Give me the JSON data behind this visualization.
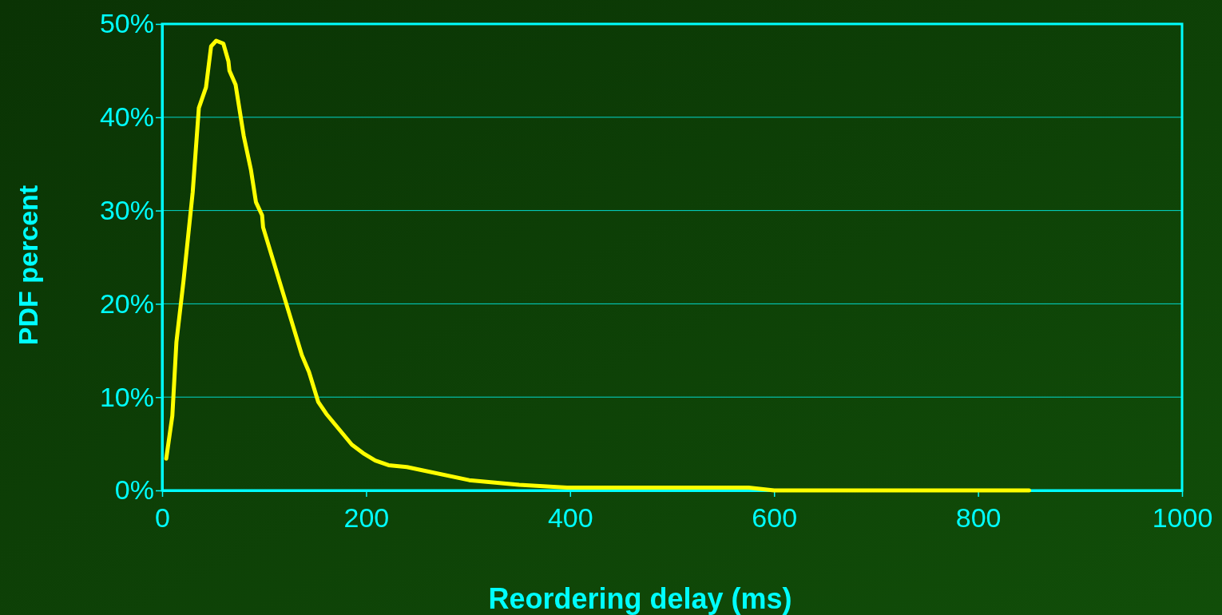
{
  "chart_data": {
    "type": "line",
    "xlabel": "Reordering delay (ms)",
    "ylabel": "PDF percent",
    "xlim": [
      0,
      1000
    ],
    "xticks": [
      0,
      200,
      400,
      600,
      800,
      1000
    ],
    "ylim": [
      0,
      50
    ],
    "yticks": [
      {
        "value": 0,
        "label": "0%"
      },
      {
        "value": 10,
        "label": "10%"
      },
      {
        "value": 20,
        "label": "20%"
      },
      {
        "value": 30,
        "label": "30%"
      },
      {
        "value": 40,
        "label": "40%"
      },
      {
        "value": 50,
        "label": "50%"
      }
    ],
    "grid": "y",
    "marker": "none",
    "line_style": "solid",
    "series": [
      {
        "color": "#ffff00",
        "x": [
          4,
          10,
          14,
          21,
          30,
          36,
          43,
          48,
          53,
          60,
          65,
          66,
          72,
          80,
          87,
          92,
          98,
          99,
          137,
          144,
          153,
          161,
          186,
          197,
          209,
          222,
          240,
          301,
          350,
          397,
          450,
          500,
          575,
          600,
          650,
          700,
          750,
          800,
          850
        ],
        "values": [
          3.4,
          8,
          15.9,
          22.5,
          32,
          41,
          43.2,
          47.6,
          48.2,
          47.9,
          46,
          45,
          43.5,
          38,
          34.4,
          30.9,
          29.5,
          28.2,
          14.5,
          12.7,
          9.5,
          8.2,
          4.9,
          4,
          3.2,
          2.7,
          2.5,
          1.1,
          0.6,
          0.3,
          0.3,
          0.3,
          0.3,
          0,
          0,
          0,
          0,
          0,
          0
        ]
      }
    ]
  }
}
